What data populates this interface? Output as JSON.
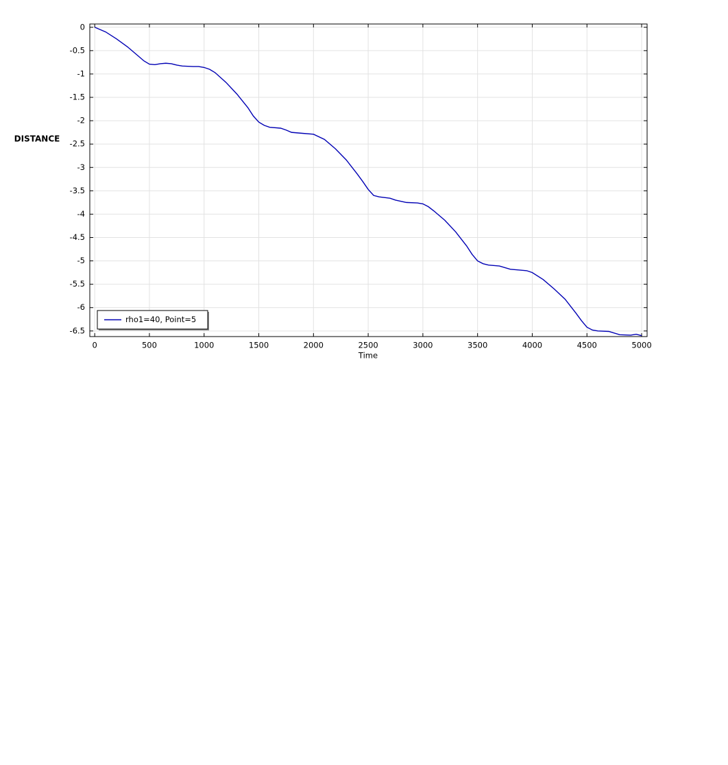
{
  "chart_data": {
    "type": "line",
    "xlabel": "Time",
    "ylabel": "DISTANCE",
    "x": [
      0,
      100,
      200,
      300,
      400,
      450,
      500,
      550,
      600,
      650,
      700,
      750,
      800,
      900,
      950,
      1000,
      1050,
      1100,
      1200,
      1300,
      1400,
      1450,
      1500,
      1550,
      1600,
      1700,
      1750,
      1800,
      1900,
      2000,
      2100,
      2200,
      2300,
      2400,
      2450,
      2500,
      2550,
      2600,
      2700,
      2750,
      2850,
      2950,
      3000,
      3050,
      3100,
      3200,
      3300,
      3400,
      3450,
      3500,
      3550,
      3600,
      3700,
      3800,
      3900,
      3950,
      4000,
      4100,
      4200,
      4300,
      4400,
      4450,
      4500,
      4550,
      4600,
      4700,
      4800,
      4900,
      4950,
      5000
    ],
    "series": [
      {
        "name": "rho1=40, Point=5",
        "color": "#0000b4",
        "values": [
          0,
          -0.1,
          -0.25,
          -0.42,
          -0.62,
          -0.72,
          -0.79,
          -0.8,
          -0.78,
          -0.77,
          -0.78,
          -0.81,
          -0.83,
          -0.84,
          -0.84,
          -0.86,
          -0.9,
          -0.97,
          -1.18,
          -1.43,
          -1.72,
          -1.9,
          -2.03,
          -2.1,
          -2.14,
          -2.16,
          -2.2,
          -2.25,
          -2.27,
          -2.29,
          -2.4,
          -2.6,
          -2.84,
          -3.14,
          -3.3,
          -3.47,
          -3.6,
          -3.63,
          -3.66,
          -3.7,
          -3.75,
          -3.76,
          -3.78,
          -3.84,
          -3.93,
          -4.13,
          -4.38,
          -4.68,
          -4.86,
          -5.0,
          -5.06,
          -5.09,
          -5.11,
          -5.18,
          -5.2,
          -5.21,
          -5.25,
          -5.4,
          -5.6,
          -5.82,
          -6.12,
          -6.28,
          -6.42,
          -6.48,
          -6.5,
          -6.51,
          -6.58,
          -6.59,
          -6.57,
          -6.6
        ]
      }
    ],
    "xlim": [
      -45,
      5050
    ],
    "ylim": [
      -6.62,
      0.07
    ],
    "xticks": [
      0,
      500,
      1000,
      1500,
      2000,
      2500,
      3000,
      3500,
      4000,
      4500,
      5000
    ],
    "yticks": [
      0,
      -0.5,
      -1,
      -1.5,
      -2,
      -2.5,
      -3,
      -3.5,
      -4,
      -4.5,
      -5,
      -5.5,
      -6,
      -6.5
    ],
    "grid": true,
    "legend": "lower left"
  }
}
